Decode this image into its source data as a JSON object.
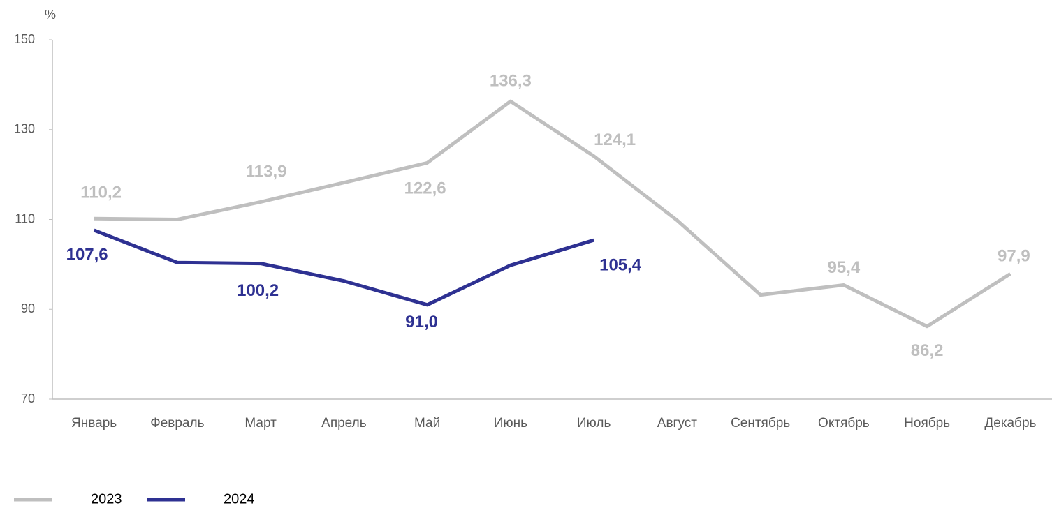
{
  "chart_data": {
    "type": "line",
    "y_label": "%",
    "categories": [
      "Январь",
      "Февраль",
      "Март",
      "Апрель",
      "Май",
      "Июнь",
      "Июль",
      "Август",
      "Сентябрь",
      "Октябрь",
      "Ноябрь",
      "Декабрь"
    ],
    "series": [
      {
        "name": "2023",
        "color": "#bfbfbf",
        "values": [
          110.2,
          110.0,
          113.9,
          118.2,
          122.6,
          136.3,
          124.1,
          109.8,
          93.2,
          95.4,
          86.2,
          97.9
        ],
        "value_labels": [
          "110,2",
          null,
          "113,9",
          null,
          "122,6",
          "136,3",
          "124,1",
          null,
          null,
          "95,4",
          "86,2",
          "97,9"
        ]
      },
      {
        "name": "2024",
        "color": "#2e3192",
        "values": [
          107.6,
          100.4,
          100.2,
          96.3,
          91.0,
          99.8,
          105.4,
          null,
          null,
          null,
          null,
          null
        ],
        "value_labels": [
          "107,6",
          null,
          "100,2",
          null,
          "91,0",
          null,
          "105,4",
          null,
          null,
          null,
          null,
          null
        ]
      }
    ],
    "ylim": [
      70,
      150
    ],
    "yticks": [
      70,
      90,
      110,
      130,
      150
    ],
    "grid": false
  }
}
